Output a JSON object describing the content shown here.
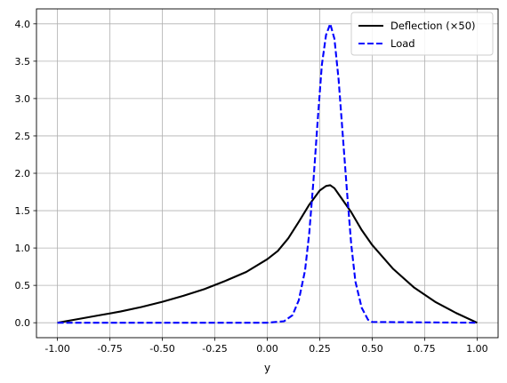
{
  "chart_data": {
    "type": "line",
    "title": "",
    "xlabel": "y",
    "ylabel": "",
    "xlim": [
      -1.1,
      1.1
    ],
    "ylim": [
      -0.2,
      4.2
    ],
    "grid": true,
    "legend_position": "top-right",
    "xticks": [
      "-1.00",
      "-0.75",
      "-0.50",
      "-0.25",
      "0.00",
      "0.25",
      "0.50",
      "0.75",
      "1.00"
    ],
    "yticks": [
      "0.0",
      "0.5",
      "1.0",
      "1.5",
      "2.0",
      "2.5",
      "3.0",
      "3.5",
      "4.0"
    ],
    "series": [
      {
        "name": "Deflection (×50)",
        "color": "#000000",
        "style": "solid",
        "x": [
          -1.0,
          -0.9,
          -0.8,
          -0.7,
          -0.6,
          -0.5,
          -0.4,
          -0.3,
          -0.2,
          -0.1,
          0.0,
          0.05,
          0.1,
          0.15,
          0.2,
          0.25,
          0.28,
          0.3,
          0.32,
          0.35,
          0.4,
          0.45,
          0.5,
          0.6,
          0.7,
          0.8,
          0.9,
          1.0
        ],
        "y": [
          0.0,
          0.05,
          0.1,
          0.15,
          0.21,
          0.28,
          0.36,
          0.45,
          0.56,
          0.68,
          0.85,
          0.96,
          1.13,
          1.35,
          1.58,
          1.77,
          1.83,
          1.84,
          1.8,
          1.68,
          1.48,
          1.24,
          1.04,
          0.72,
          0.47,
          0.28,
          0.13,
          0.0
        ]
      },
      {
        "name": "Load",
        "color": "#0000ff",
        "style": "dashed",
        "x": [
          -1.0,
          0.0,
          0.08,
          0.12,
          0.15,
          0.18,
          0.2,
          0.22,
          0.24,
          0.26,
          0.28,
          0.3,
          0.32,
          0.34,
          0.36,
          0.38,
          0.4,
          0.42,
          0.45,
          0.48,
          0.5,
          1.0
        ],
        "y": [
          0.0,
          0.0,
          0.02,
          0.1,
          0.3,
          0.7,
          1.2,
          1.9,
          2.7,
          3.45,
          3.85,
          4.0,
          3.8,
          3.25,
          2.5,
          1.75,
          1.05,
          0.55,
          0.2,
          0.04,
          0.01,
          0.0
        ]
      }
    ]
  }
}
